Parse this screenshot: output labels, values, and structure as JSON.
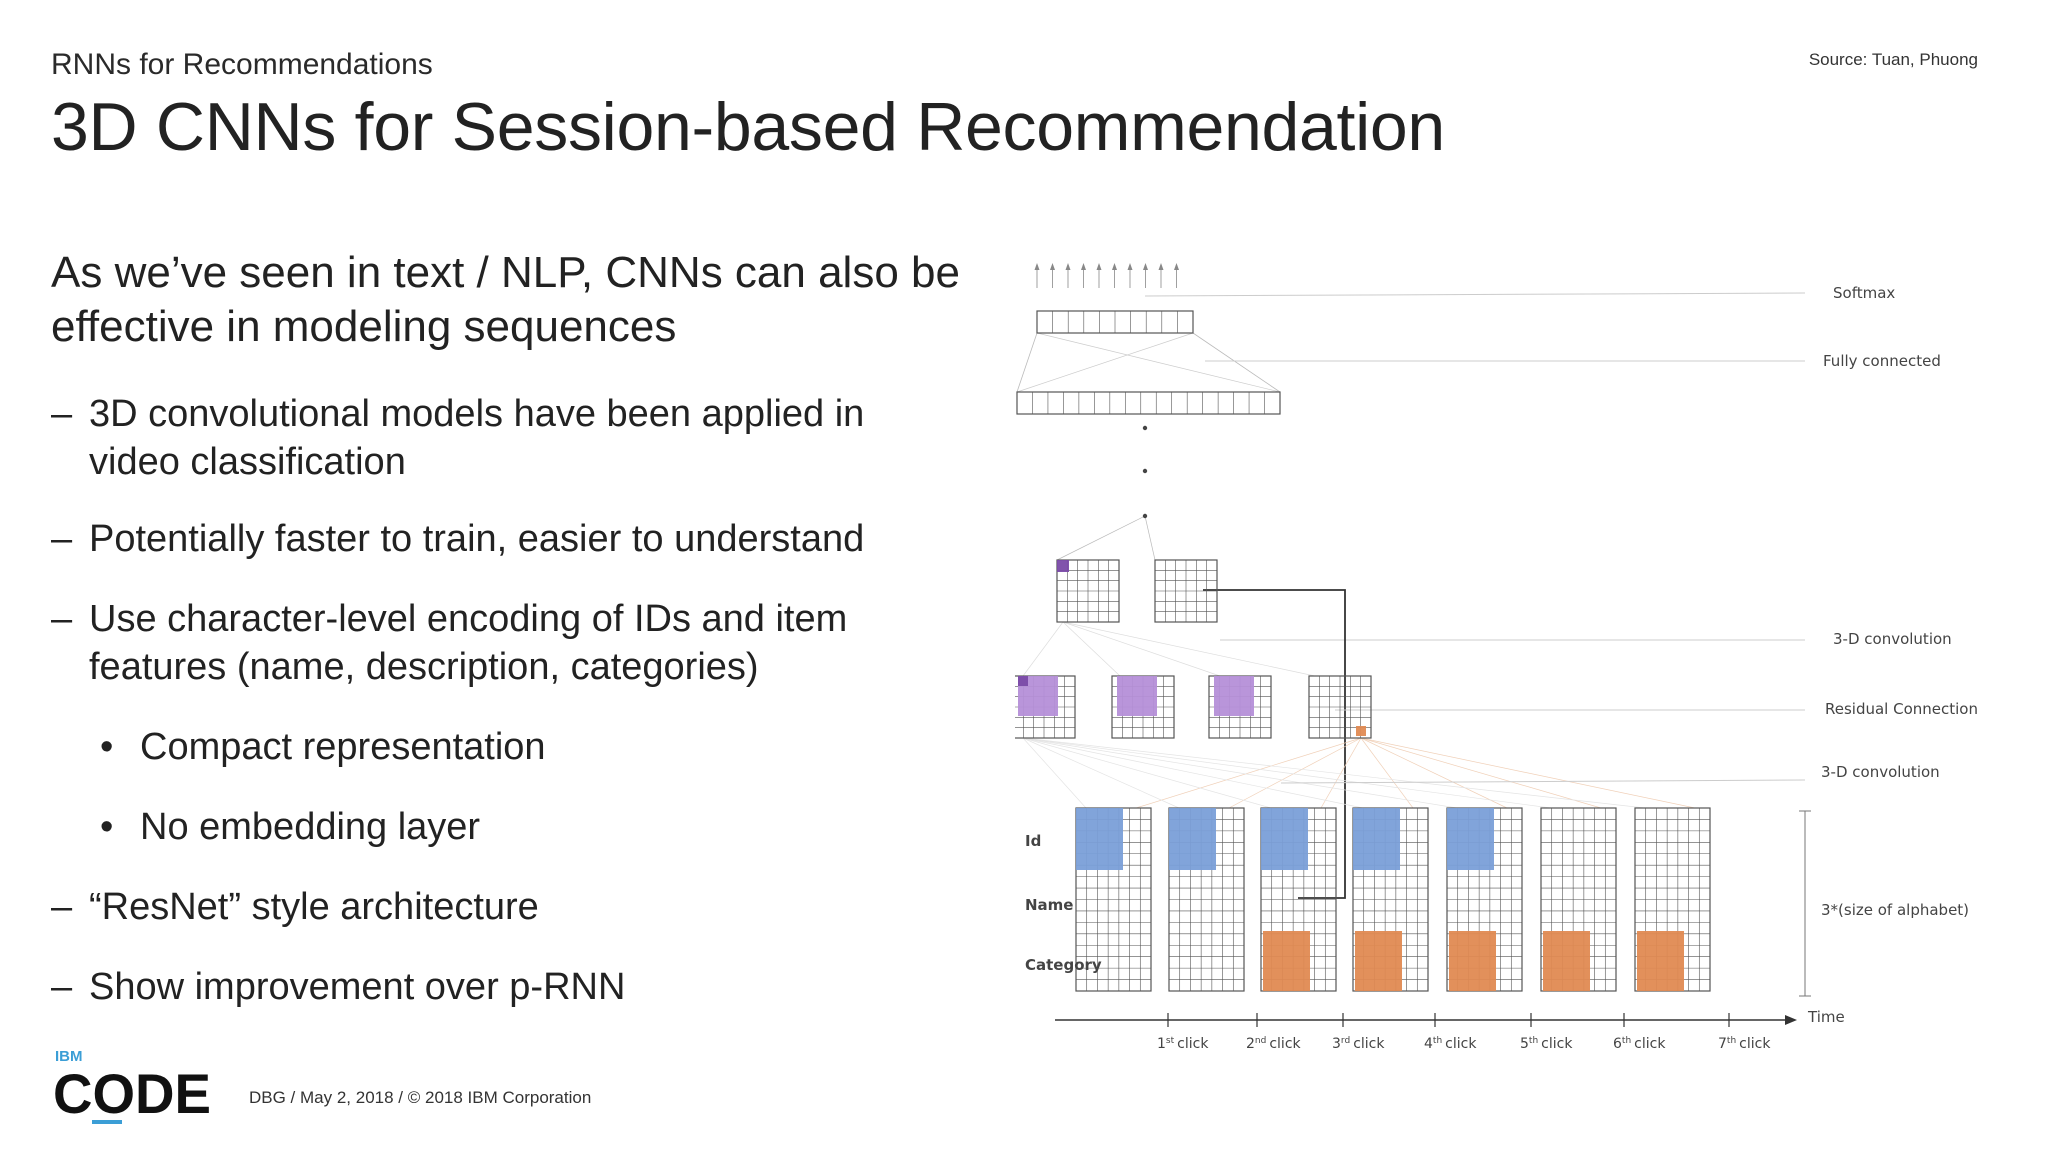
{
  "header": {
    "kicker": "RNNs for Recommendations",
    "title": "3D CNNs for Session-based Recommendation",
    "source": "Source: Tuan, Phuong"
  },
  "body": {
    "intro": "As we’ve seen in text / NLP, CNNs can also be effective in modeling sequences",
    "bullets": [
      {
        "marker": "–",
        "text": "3D convolutional models have been applied in video classification"
      },
      {
        "marker": "–",
        "text": "Potentially faster to train, easier to understand"
      },
      {
        "marker": "–",
        "text": "Use character-level encoding of IDs and item features (name, description, categories)"
      },
      {
        "marker": "•",
        "text": "Compact representation"
      },
      {
        "marker": "•",
        "text": "No embedding layer"
      },
      {
        "marker": "–",
        "text": "“ResNet” style architecture"
      },
      {
        "marker": "–",
        "text": "Show improvement over p-RNN"
      }
    ]
  },
  "diagram": {
    "labels": {
      "softmax": "Softmax",
      "fully_connected": "Fully connected",
      "conv_top": "3-D convolution",
      "residual": "Residual Connection",
      "conv_bottom": "3-D convolution",
      "size": "3*(size of alphabet)",
      "time": "Time",
      "row_id": "Id",
      "row_name": "Name",
      "row_category": "Category"
    },
    "clicks": [
      {
        "n": "1",
        "sup": "st",
        "word": "click"
      },
      {
        "n": "2",
        "sup": "nd",
        "word": "click"
      },
      {
        "n": "3",
        "sup": "rd",
        "word": "click"
      },
      {
        "n": "4",
        "sup": "th",
        "word": "click"
      },
      {
        "n": "5",
        "sup": "th",
        "word": "click"
      },
      {
        "n": "6",
        "sup": "th",
        "word": "click"
      },
      {
        "n": "7",
        "sup": "th",
        "word": "click"
      }
    ],
    "colors": {
      "id": "#7a9fd8",
      "category": "#e08a52",
      "conv": "#b58fd8",
      "conv_dark": "#7a4aa8",
      "grid": "#555555"
    }
  },
  "footer": {
    "logo_small": "IBM",
    "logo_big": "CODE",
    "text": "DBG / May 2, 2018 / © 2018 IBM Corporation"
  }
}
